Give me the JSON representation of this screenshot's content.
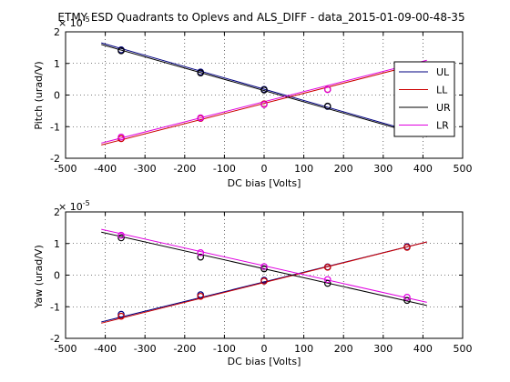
{
  "chart_data": [
    {
      "type": "scatter",
      "title": "ETMY ESD Quadrants to Oplevs and ALS_DIFF - data_2015-01-09-00-48-35",
      "xlabel": "DC bias [Volts]",
      "ylabel": "Pitch (urad/V)",
      "multiplier_label": "× 10",
      "multiplier_exp": "-5",
      "xlim": [
        -500,
        500
      ],
      "ylim": [
        -2,
        2
      ],
      "xticks": [
        -500,
        -400,
        -300,
        -200,
        -100,
        0,
        100,
        200,
        300,
        400,
        500
      ],
      "yticks": [
        -2,
        -1,
        0,
        1,
        2
      ],
      "grid": true,
      "legend_position": "right",
      "series": [
        {
          "name": "UL",
          "color": "#000080",
          "points": [
            [
              -360,
              1.43
            ],
            [
              -160,
              0.73
            ],
            [
              0,
              0.18
            ],
            [
              160,
              -0.36
            ],
            [
              360,
              -1.05
            ]
          ],
          "fit": [
            [
              -410,
              1.65
            ],
            [
              410,
              -1.28
            ]
          ]
        },
        {
          "name": "LL",
          "color": "#cc0000",
          "points": [
            [
              -360,
              -1.38
            ],
            [
              -160,
              -0.74
            ],
            [
              0,
              -0.28
            ],
            [
              160,
              0.18
            ],
            [
              360,
              0.78
            ]
          ],
          "fit": [
            [
              -410,
              -1.58
            ],
            [
              410,
              1.05
            ]
          ]
        },
        {
          "name": "UR",
          "color": "#000000",
          "points": [
            [
              -360,
              1.4
            ],
            [
              -160,
              0.7
            ],
            [
              0,
              0.16
            ],
            [
              160,
              -0.35
            ],
            [
              360,
              -1.07
            ]
          ],
          "fit": [
            [
              -410,
              1.6
            ],
            [
              410,
              -1.32
            ]
          ]
        },
        {
          "name": "LR",
          "color": "#e000e0",
          "points": [
            [
              -360,
              -1.33
            ],
            [
              -160,
              -0.72
            ],
            [
              0,
              -0.3
            ],
            [
              160,
              0.17
            ],
            [
              360,
              0.8
            ]
          ],
          "fit": [
            [
              -410,
              -1.52
            ],
            [
              410,
              1.1
            ]
          ]
        }
      ]
    },
    {
      "type": "scatter",
      "title": "",
      "xlabel": "DC bias [Volts]",
      "ylabel": "Yaw (urad/V)",
      "multiplier_label": "× 10",
      "multiplier_exp": "-5",
      "xlim": [
        -500,
        500
      ],
      "ylim": [
        -2,
        2
      ],
      "xticks": [
        -500,
        -400,
        -300,
        -200,
        -100,
        0,
        100,
        200,
        300,
        400,
        500
      ],
      "yticks": [
        -2,
        -1,
        0,
        1,
        2
      ],
      "grid": true,
      "legend_position": "none",
      "series": [
        {
          "name": "UL",
          "color": "#000080",
          "points": [
            [
              -360,
              -1.24
            ],
            [
              -160,
              -0.62
            ],
            [
              0,
              -0.16
            ],
            [
              160,
              0.26
            ],
            [
              360,
              0.9
            ]
          ],
          "fit": [
            [
              -410,
              -1.48
            ],
            [
              410,
              1.05
            ]
          ]
        },
        {
          "name": "LL",
          "color": "#cc0000",
          "points": [
            [
              -360,
              -1.3
            ],
            [
              -160,
              -0.67
            ],
            [
              0,
              -0.19
            ],
            [
              160,
              0.25
            ],
            [
              360,
              0.88
            ]
          ],
          "fit": [
            [
              -410,
              -1.52
            ],
            [
              410,
              1.05
            ]
          ]
        },
        {
          "name": "UR",
          "color": "#000000",
          "points": [
            [
              -360,
              1.18
            ],
            [
              -160,
              0.57
            ],
            [
              0,
              0.2
            ],
            [
              160,
              -0.26
            ],
            [
              360,
              -0.8
            ]
          ],
          "fit": [
            [
              -410,
              1.36
            ],
            [
              410,
              -0.96
            ]
          ]
        },
        {
          "name": "LR",
          "color": "#e000e0",
          "points": [
            [
              -360,
              1.26
            ],
            [
              -160,
              0.71
            ],
            [
              0,
              0.27
            ],
            [
              160,
              -0.14
            ],
            [
              360,
              -0.7
            ]
          ],
          "fit": [
            [
              -410,
              1.45
            ],
            [
              410,
              -0.86
            ]
          ]
        }
      ]
    }
  ]
}
